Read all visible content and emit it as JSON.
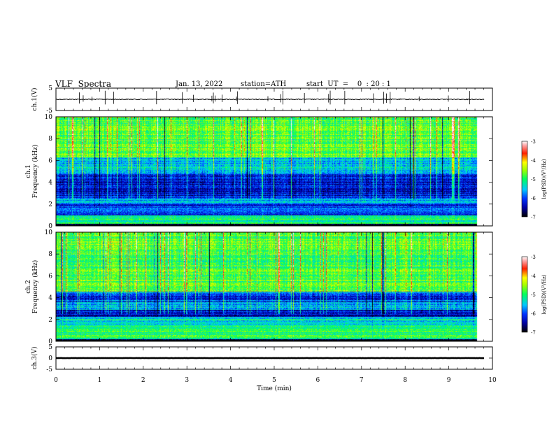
{
  "header": {
    "title": "VLF  Spectra",
    "date": "Jan. 13, 2022",
    "station": "station=ATH",
    "start": "start  UT  =    0  : 20 : 1"
  },
  "chart_data": [
    {
      "type": "line",
      "ylabel": "ch.1(V)",
      "ylim": [
        -5,
        5
      ],
      "yticks": [
        "5",
        "-5"
      ],
      "xlim": [
        0,
        10
      ],
      "baseline": 0,
      "noise": 0.6
    },
    {
      "type": "heatmap",
      "ylabel_top": "ch.1",
      "ylabel": "Frequency (kHz)",
      "ylim": [
        0,
        10
      ],
      "yticks": [
        "0",
        "2",
        "4",
        "6",
        "8",
        "10"
      ],
      "xlim": [
        0,
        10
      ],
      "data_extent_x": 9.8,
      "colorbar": {
        "label": "log(PSD)(V²/Hz)",
        "range": [
          -7,
          -3
        ],
        "ticks": [
          "-3",
          "-4",
          "-5",
          "-6",
          "-7"
        ]
      },
      "bands": [
        {
          "f": [
            0,
            0.2
          ],
          "level": -7.0
        },
        {
          "f": [
            0.2,
            1.0
          ],
          "level": -5.2
        },
        {
          "f": [
            1.0,
            2.0
          ],
          "level": -6.1
        },
        {
          "f": [
            2.0,
            2.6
          ],
          "level": -5.6
        },
        {
          "f": [
            2.6,
            4.8
          ],
          "level": -6.3
        },
        {
          "f": [
            4.8,
            6.3
          ],
          "level": -5.5
        },
        {
          "f": [
            6.3,
            10
          ],
          "level": -4.8
        }
      ]
    },
    {
      "type": "heatmap",
      "ylabel_top": "ch.2",
      "ylabel": "Frequency (kHz)",
      "ylim": [
        0,
        10
      ],
      "yticks": [
        "0",
        "2",
        "4",
        "6",
        "8",
        "10"
      ],
      "xlim": [
        0,
        10
      ],
      "data_extent_x": 9.8,
      "colorbar": {
        "label": "log(PSD)(V²/Hz)",
        "range": [
          -7,
          -3
        ],
        "ticks": [
          "-3",
          "-4",
          "-5",
          "-6",
          "-7"
        ]
      },
      "bands": [
        {
          "f": [
            0,
            0.2
          ],
          "level": -7.0
        },
        {
          "f": [
            0.2,
            1.5
          ],
          "level": -5.0
        },
        {
          "f": [
            1.5,
            2.3
          ],
          "level": -5.4
        },
        {
          "f": [
            2.3,
            2.9
          ],
          "level": -6.4
        },
        {
          "f": [
            2.9,
            3.8
          ],
          "level": -5.6
        },
        {
          "f": [
            3.8,
            4.6
          ],
          "level": -6.1
        },
        {
          "f": [
            4.6,
            10
          ],
          "level": -4.8
        }
      ]
    },
    {
      "type": "line",
      "ylabel": "ch.3(V)",
      "ylim": [
        -5,
        5
      ],
      "yticks": [
        "5",
        "0",
        "-5"
      ],
      "xlim": [
        0,
        10
      ],
      "baseline": 0,
      "noise": 0.1
    }
  ],
  "xaxis": {
    "label": "Time  (min)",
    "ticks": [
      "0",
      "1",
      "2",
      "3",
      "4",
      "5",
      "6",
      "7",
      "8",
      "9",
      "10"
    ]
  }
}
